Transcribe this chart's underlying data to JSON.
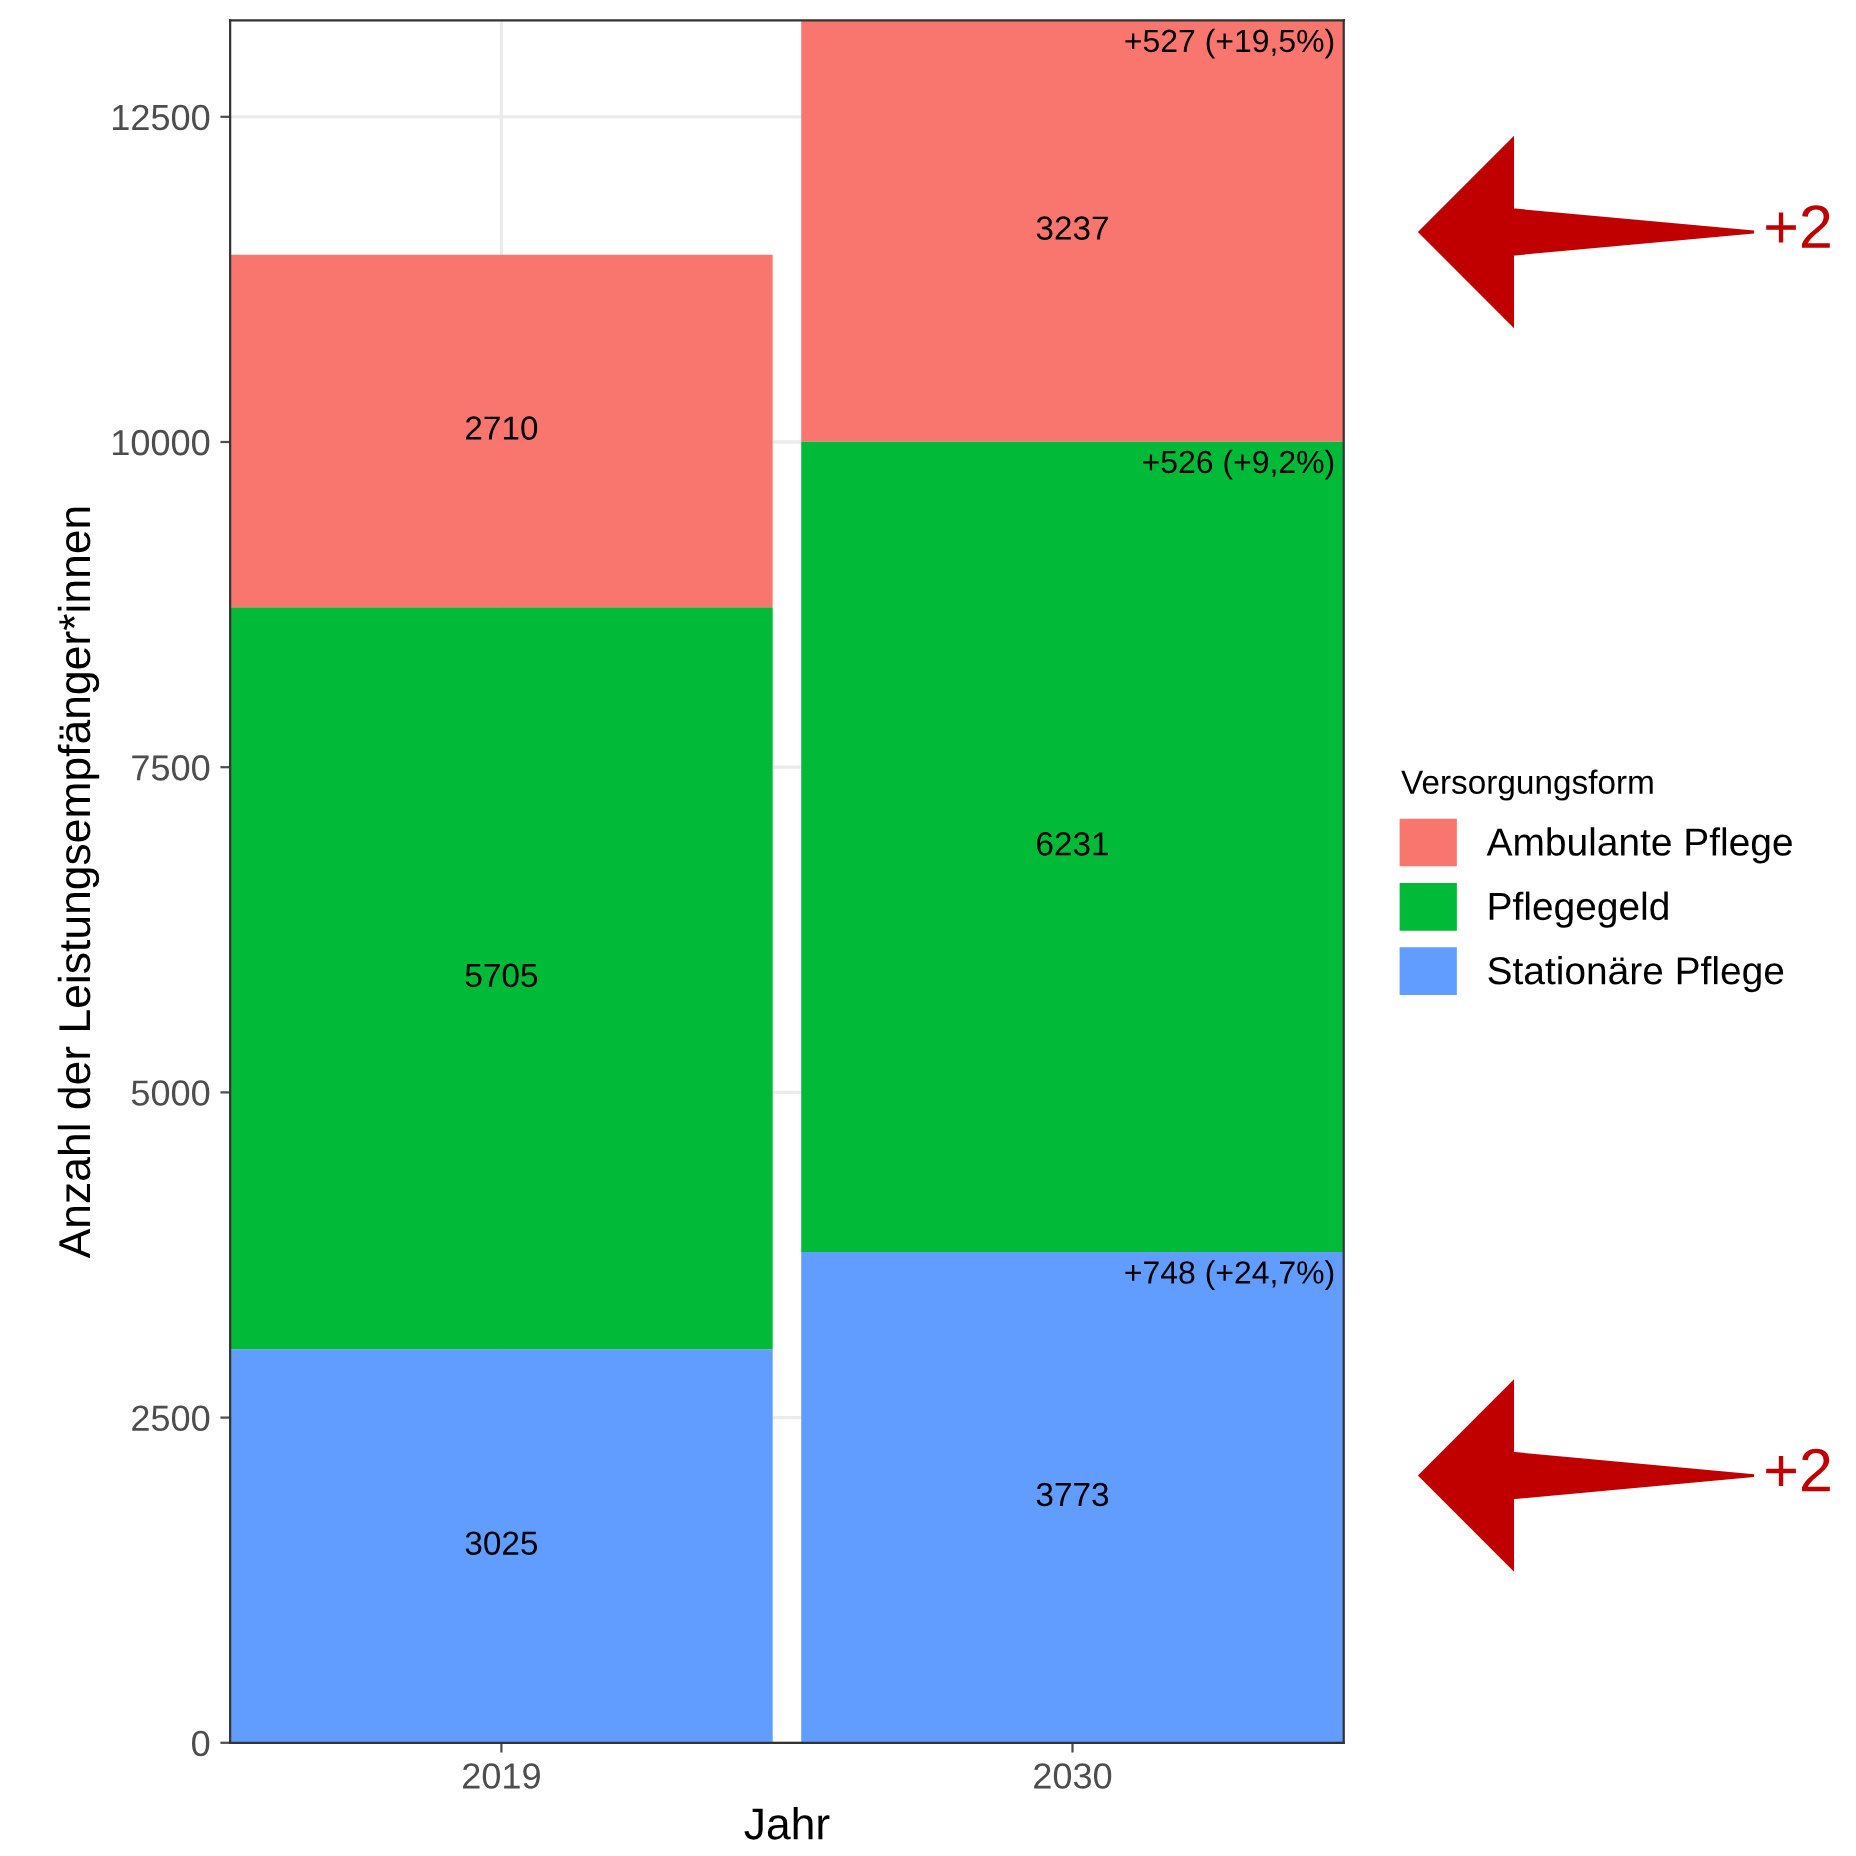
{
  "chart_data": {
    "type": "bar",
    "stacked": true,
    "xlabel": "Jahr",
    "ylabel": "Anzahl der Leistungsempfänger*innen",
    "legend_title": "Versorgungsform",
    "categories": [
      "2019",
      "2030"
    ],
    "series": [
      {
        "name": "Stationäre Pflege",
        "color": "#619cff",
        "values": [
          3025,
          3773
        ]
      },
      {
        "name": "Pflegegeld",
        "color": "#00ba38",
        "values": [
          5705,
          6231
        ]
      },
      {
        "name": "Ambulante Pflege",
        "color": "#f8766d",
        "values": [
          2710,
          3237
        ]
      }
    ],
    "ylim": [
      0,
      13241
    ],
    "yticks": [
      0,
      2500,
      5000,
      7500,
      10000,
      12500
    ],
    "grid": true,
    "legend": "right",
    "data_labels": true,
    "annotations": [
      {
        "text": "+748 (+24,7%)",
        "x": "2030",
        "y": 3773
      },
      {
        "text": "+526 (+9,2%)",
        "x": "2030",
        "y": 10004
      },
      {
        "text": "+527 (+19,5%)",
        "x": "2030",
        "y": 13241
      },
      "+2",
      "+2"
    ]
  }
}
